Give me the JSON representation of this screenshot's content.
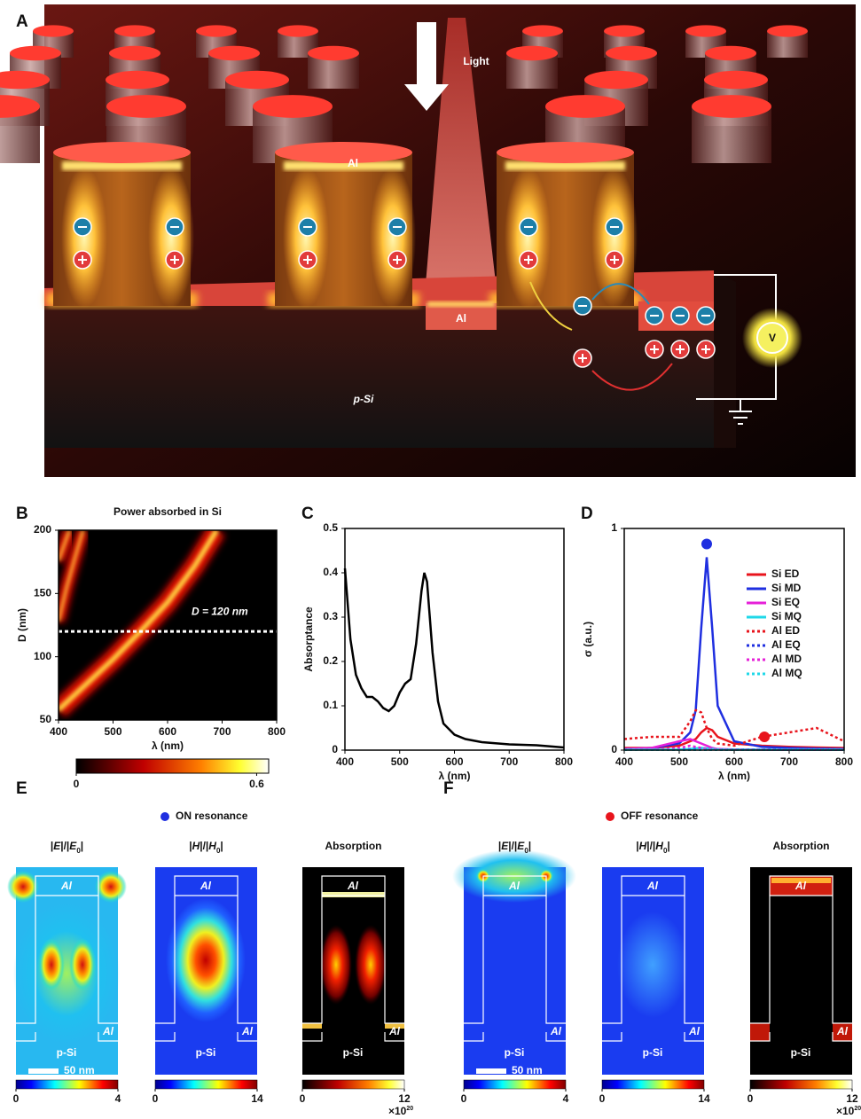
{
  "figure": {
    "panel_labels": [
      "A",
      "B",
      "C",
      "D",
      "E",
      "F"
    ],
    "illustration": {
      "light": "Light",
      "al_top": "Al",
      "al_bottom": "Al",
      "substrate": "p-Si",
      "voltmeter": "V"
    }
  },
  "chart_data": [
    {
      "type": "heatmap",
      "title": "Power absorbed in Si",
      "xlabel": "λ (nm)",
      "ylabel": "D (nm)",
      "xlim": [
        400,
        800
      ],
      "ylim": [
        50,
        200
      ],
      "xticks": [
        400,
        500,
        600,
        700,
        800
      ],
      "yticks": [
        50,
        100,
        150,
        200
      ],
      "ridges": [
        {
          "x": [
            400,
            450,
            500,
            550,
            600,
            650,
            690
          ],
          "y": [
            58,
            78,
            98,
            120,
            143,
            172,
            200
          ]
        },
        {
          "x": [
            400,
            415,
            430,
            445
          ],
          "y": [
            128,
            155,
            178,
            200
          ]
        },
        {
          "x": [
            400,
            410,
            420
          ],
          "y": [
            176,
            188,
            200
          ]
        }
      ],
      "reference_line": {
        "y": 120,
        "label": "D = 120 nm"
      },
      "colorbar": {
        "colormap": "hot",
        "lim": [
          0,
          0.64
        ],
        "ticks": [
          0,
          0.6
        ]
      }
    },
    {
      "type": "line",
      "xlabel": "λ (nm)",
      "ylabel": "Absorptance",
      "xlim": [
        400,
        800
      ],
      "ylim": [
        0,
        0.5
      ],
      "xticks": [
        400,
        500,
        600,
        700,
        800
      ],
      "yticks": [
        0,
        0.1,
        0.2,
        0.3,
        0.4,
        0.5
      ],
      "x": [
        400,
        410,
        420,
        430,
        440,
        450,
        460,
        470,
        480,
        490,
        500,
        510,
        520,
        530,
        540,
        545,
        550,
        560,
        570,
        580,
        600,
        620,
        650,
        700,
        750,
        800
      ],
      "series": [
        {
          "color": "#000000",
          "linestyle": "solid",
          "values": [
            0.41,
            0.25,
            0.17,
            0.14,
            0.12,
            0.12,
            0.11,
            0.095,
            0.088,
            0.1,
            0.13,
            0.15,
            0.16,
            0.24,
            0.36,
            0.4,
            0.38,
            0.22,
            0.11,
            0.06,
            0.035,
            0.025,
            0.018,
            0.013,
            0.011,
            0.006
          ]
        }
      ]
    },
    {
      "type": "line",
      "xlabel": "λ (nm)",
      "ylabel": "σ (a.u.)",
      "xlim": [
        400,
        800
      ],
      "ylim": [
        0,
        1
      ],
      "xticks": [
        400,
        500,
        600,
        700,
        800
      ],
      "yticks": [
        0,
        1
      ],
      "legend": "upper right",
      "x": [
        400,
        450,
        500,
        520,
        530,
        540,
        550,
        560,
        570,
        600,
        650,
        700,
        750,
        800
      ],
      "series": [
        {
          "name": "Si ED",
          "color": "#e8141c",
          "linestyle": "solid",
          "values": [
            0.01,
            0.01,
            0.02,
            0.04,
            0.05,
            0.08,
            0.1,
            0.09,
            0.06,
            0.03,
            0.02,
            0.015,
            0.012,
            0.01
          ]
        },
        {
          "name": "Si MD",
          "color": "#1f2fe0",
          "linestyle": "solid",
          "values": [
            0.005,
            0.01,
            0.03,
            0.08,
            0.18,
            0.55,
            0.87,
            0.55,
            0.2,
            0.04,
            0.015,
            0.01,
            0.007,
            0.005
          ]
        },
        {
          "name": "Si EQ",
          "color": "#e620d8",
          "linestyle": "solid",
          "values": [
            0.005,
            0.01,
            0.04,
            0.05,
            0.04,
            0.03,
            0.02,
            0.01,
            0.005,
            0.003,
            0.002,
            0.001,
            0.001,
            0.001
          ]
        },
        {
          "name": "Si MQ",
          "color": "#1fd8e8",
          "linestyle": "solid",
          "values": [
            0.002,
            0.002,
            0.003,
            0.005,
            0.008,
            0.01,
            0.008,
            0.005,
            0.003,
            0.002,
            0.002,
            0.002,
            0.002,
            0.002
          ]
        },
        {
          "name": "Al ED",
          "color": "#e8141c",
          "linestyle": "dotted",
          "values": [
            0.05,
            0.06,
            0.06,
            0.13,
            0.18,
            0.17,
            0.1,
            0.05,
            0.03,
            0.02,
            0.06,
            0.08,
            0.1,
            0.04
          ]
        },
        {
          "name": "Al EQ",
          "color": "#1f2fe0",
          "linestyle": "dotted",
          "values": [
            0.003,
            0.003,
            0.003,
            0.004,
            0.004,
            0.004,
            0.003,
            0.003,
            0.003,
            0.003,
            0.003,
            0.003,
            0.003,
            0.003
          ]
        },
        {
          "name": "Al MD",
          "color": "#e620d8",
          "linestyle": "dotted",
          "values": [
            0.002,
            0.003,
            0.01,
            0.02,
            0.015,
            0.01,
            0.006,
            0.004,
            0.003,
            0.002,
            0.002,
            0.002,
            0.002,
            0.002
          ]
        },
        {
          "name": "Al MQ",
          "color": "#1fd8e8",
          "linestyle": "dotted",
          "values": [
            0.001,
            0.001,
            0.001,
            0.001,
            0.001,
            0.001,
            0.001,
            0.001,
            0.001,
            0.001,
            0.001,
            0.001,
            0.001,
            0.001
          ]
        }
      ],
      "markers": [
        {
          "x": 550,
          "y": 0.93,
          "color": "#1f2fe0"
        },
        {
          "x": 655,
          "y": 0.06,
          "color": "#e8141c"
        }
      ]
    }
  ],
  "field_maps": [
    {
      "legend": "ON resonance",
      "legend_color": "#1f2fe0",
      "cap_label": "Al",
      "slab_label": "Al",
      "substrate": "p-Si",
      "scale_bar": "50 nm",
      "maps": [
        {
          "title": [
            "|",
            "E",
            "|/|",
            "E",
            "0",
            "|"
          ],
          "colormap": "jet",
          "clim": [
            0,
            4
          ],
          "cticks": [
            0,
            4
          ]
        },
        {
          "title": [
            "|",
            "H",
            "|/|",
            "H",
            "0",
            "|"
          ],
          "colormap": "jet",
          "clim": [
            0,
            14
          ],
          "cticks": [
            0,
            14
          ]
        },
        {
          "title": "Absorption",
          "colormap": "hot",
          "clim": [
            0,
            12
          ],
          "cticks": [
            0,
            12
          ],
          "multiplier": [
            "×10",
            "20"
          ]
        }
      ]
    },
    {
      "legend": "OFF resonance",
      "legend_color": "#e8141c",
      "cap_label": "Al",
      "slab_label": "Al",
      "substrate": "p-Si",
      "scale_bar": "50 nm",
      "maps": [
        {
          "title": [
            "|",
            "E",
            "|/|",
            "E",
            "0",
            "|"
          ],
          "colormap": "jet",
          "clim": [
            0,
            4
          ],
          "cticks": [
            0,
            4
          ]
        },
        {
          "title": [
            "|",
            "H",
            "|/|",
            "H",
            "0",
            "|"
          ],
          "colormap": "jet",
          "clim": [
            0,
            14
          ],
          "cticks": [
            0,
            14
          ]
        },
        {
          "title": "Absorption",
          "colormap": "hot",
          "clim": [
            0,
            12
          ],
          "cticks": [
            0,
            12
          ],
          "multiplier": [
            "×10",
            "20"
          ]
        }
      ]
    }
  ]
}
